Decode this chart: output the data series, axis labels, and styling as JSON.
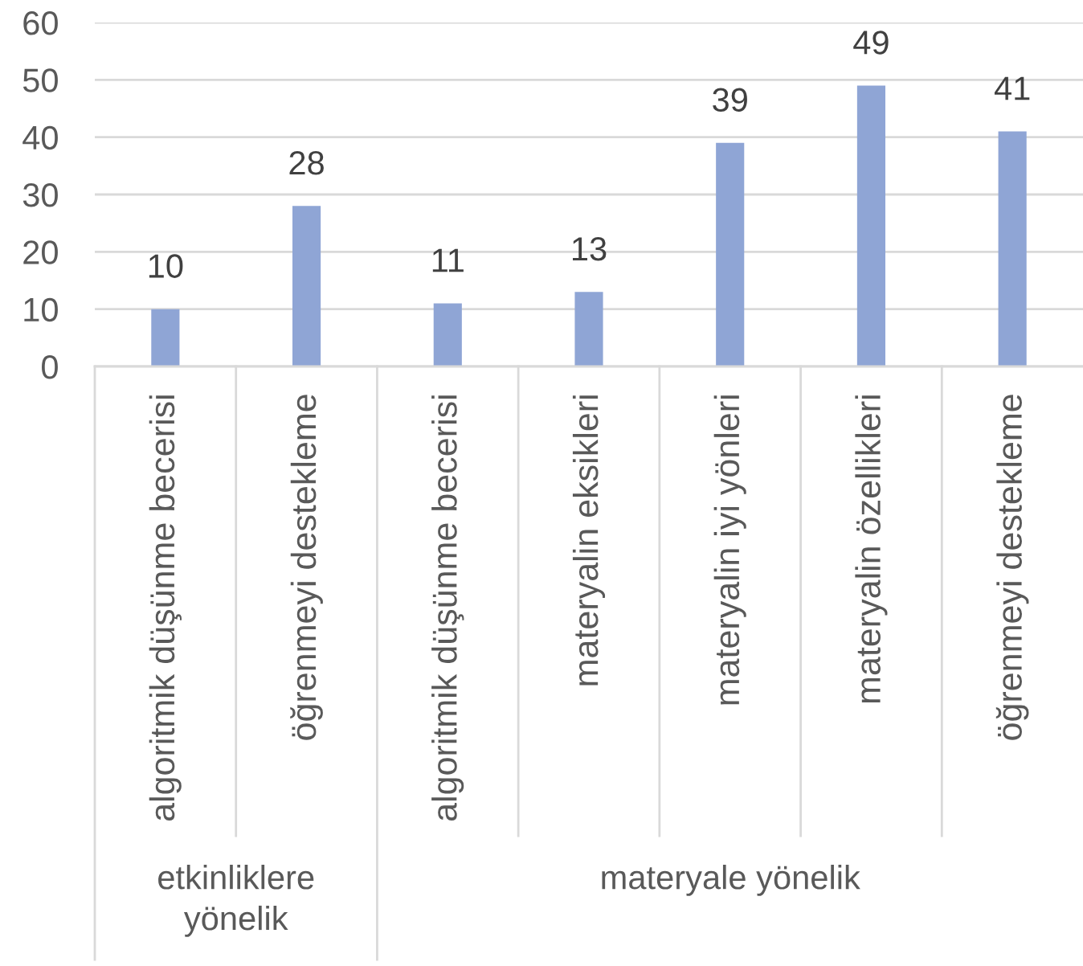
{
  "chart_data": {
    "type": "bar",
    "categories": [
      "algoritmik düşünme becerisi",
      "öğrenmeyi destekleme",
      "algoritmik düşünme becerisi",
      "materyalin eksikleri",
      "materyalin iyi yönleri",
      "materyalin özellikleri",
      "öğrenmeyi destekleme"
    ],
    "values": [
      10,
      28,
      11,
      13,
      39,
      49,
      41
    ],
    "color": "#8fa5d5",
    "ylim": [
      0,
      60
    ],
    "yticks": [
      0,
      10,
      20,
      30,
      40,
      50,
      60
    ],
    "grid": "y",
    "data_labels": true,
    "annotations": [
      "etkinliklere yönelik",
      "materyale yönelik"
    ]
  }
}
